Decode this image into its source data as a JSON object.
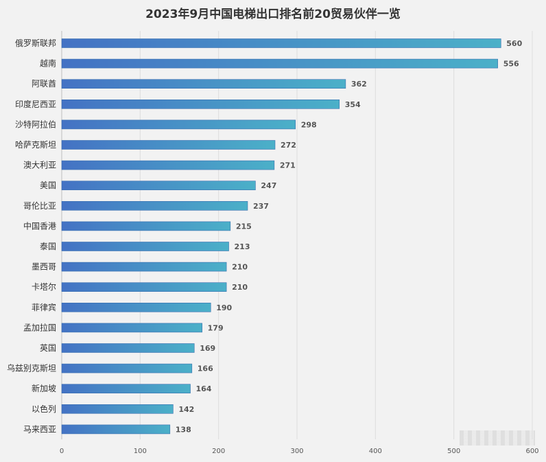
{
  "chart_data": {
    "type": "bar",
    "orientation": "horizontal",
    "title": "2023年9月中国电梯出口排名前20贸易伙伴一览",
    "categories": [
      "俄罗斯联邦",
      "越南",
      "阿联酋",
      "印度尼西亚",
      "沙特阿拉伯",
      "哈萨克斯坦",
      "澳大利亚",
      "美国",
      "哥伦比亚",
      "中国香港",
      "泰国",
      "墨西哥",
      "卡塔尔",
      "菲律宾",
      "孟加拉国",
      "英国",
      "乌兹别克斯坦",
      "新加坡",
      "以色列",
      "马来西亚"
    ],
    "values": [
      560,
      556,
      362,
      354,
      298,
      272,
      271,
      247,
      237,
      215,
      213,
      210,
      210,
      190,
      179,
      169,
      166,
      164,
      142,
      138
    ],
    "xlim": [
      0,
      600
    ],
    "xticks": [
      0,
      100,
      200,
      300,
      400,
      500,
      600
    ],
    "xlabel": "",
    "ylabel": "",
    "grid": "vertical",
    "colors": {
      "bar_start": "#4472c4",
      "bar_end": "#4bb0c8",
      "grid": "#dddddd"
    }
  }
}
